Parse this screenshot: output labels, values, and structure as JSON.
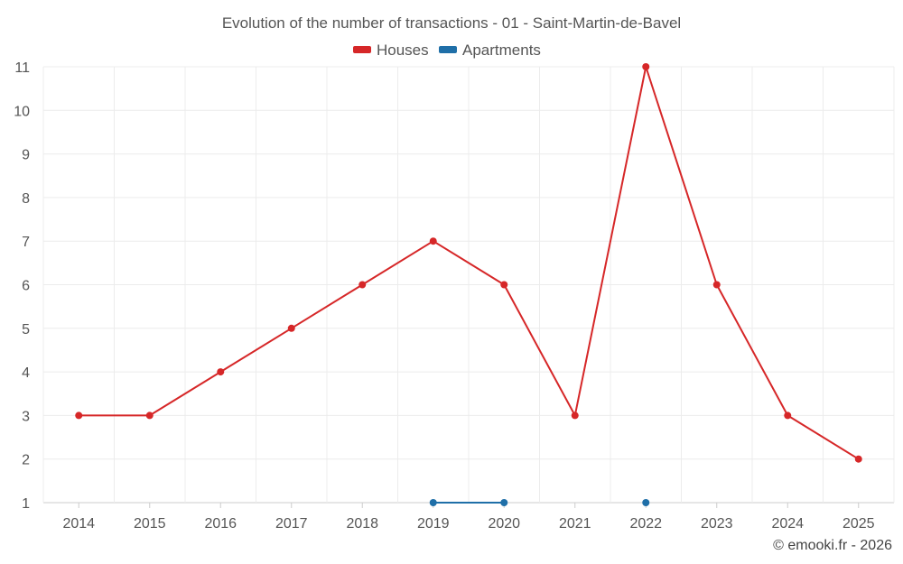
{
  "chart_data": {
    "type": "line",
    "title": "Evolution of the number of transactions - 01 - Saint-Martin-de-Bavel",
    "categories": [
      "2014",
      "2015",
      "2016",
      "2017",
      "2018",
      "2019",
      "2020",
      "2021",
      "2022",
      "2023",
      "2024",
      "2025"
    ],
    "series": [
      {
        "name": "Houses",
        "color": "#d62728",
        "values": [
          3,
          3,
          4,
          5,
          6,
          7,
          6,
          3,
          11,
          6,
          3,
          2
        ]
      },
      {
        "name": "Apartments",
        "color": "#1f6fa8",
        "values": [
          null,
          null,
          null,
          null,
          null,
          1,
          1,
          null,
          1,
          null,
          null,
          null
        ]
      }
    ],
    "yticks": [
      "1",
      "2",
      "3",
      "4",
      "5",
      "6",
      "7",
      "8",
      "9",
      "10",
      "11"
    ],
    "ylim": [
      1,
      11
    ],
    "grid": true,
    "legend_position": "top-center",
    "xlabel": "",
    "ylabel": ""
  },
  "credit": "© emooki.fr - 2026"
}
